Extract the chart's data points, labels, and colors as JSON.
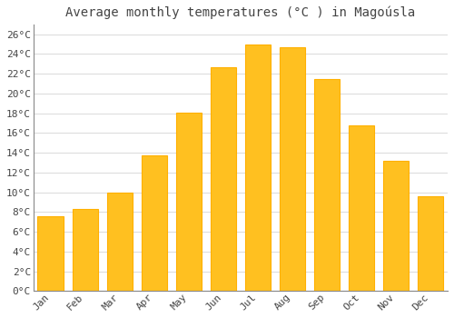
{
  "title": "Average monthly temperatures (°C ) in Magoúsla",
  "months": [
    "Jan",
    "Feb",
    "Mar",
    "Apr",
    "May",
    "Jun",
    "Jul",
    "Aug",
    "Sep",
    "Oct",
    "Nov",
    "Dec"
  ],
  "values": [
    7.6,
    8.3,
    10.0,
    13.7,
    18.1,
    22.7,
    25.0,
    24.7,
    21.5,
    16.8,
    13.2,
    9.6
  ],
  "bar_color": "#FFC020",
  "bar_edge_color": "#FFB000",
  "background_color": "#FFFFFF",
  "grid_color": "#DDDDDD",
  "text_color": "#444444",
  "ylim": [
    0,
    27
  ],
  "ytick_step": 2,
  "title_fontsize": 10,
  "tick_fontsize": 8,
  "font_family": "monospace"
}
